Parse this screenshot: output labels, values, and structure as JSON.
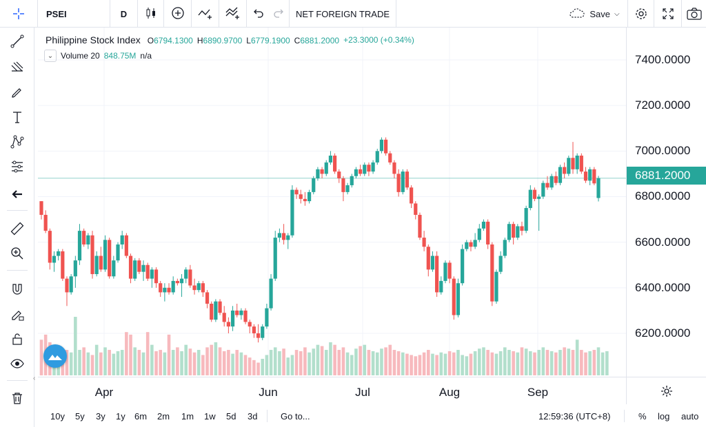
{
  "toolbar": {
    "symbol": "PSEI",
    "interval": "D",
    "indicator_label": "NET FOREIGN TRADE",
    "save_label": "Save"
  },
  "legend": {
    "title": "Philippine Stock Index",
    "o_key": "O",
    "o_val": "6794.1300",
    "h_key": "H",
    "h_val": "6890.9700",
    "l_key": "L",
    "l_val": "6779.1900",
    "c_key": "C",
    "c_val": "6881.2000",
    "change": "+23.3000 (+0.34%)"
  },
  "volume": {
    "label": "Volume 20",
    "value": "848.75M",
    "ma": "n/a"
  },
  "price_scale": {
    "ticks": [
      "7400.0000",
      "7200.0000",
      "7000.0000",
      "6800.0000",
      "6600.0000",
      "6400.0000",
      "6200.0000"
    ],
    "last_price": "6881.2000"
  },
  "time_axis": {
    "ticks": [
      "Apr",
      "Jun",
      "Jul",
      "Aug",
      "Sep"
    ]
  },
  "bottom_bar": {
    "ranges": [
      "10y",
      "5y",
      "3y",
      "1y",
      "6m",
      "2m",
      "1m",
      "1w",
      "5d",
      "3d"
    ],
    "goto": "Go to...",
    "clock": "12:59:36 (UTC+8)",
    "percent": "%",
    "log": "log",
    "auto": "auto"
  },
  "colors": {
    "up": "#26a69a",
    "down": "#ef5350",
    "up_volume": "#b2dfcc",
    "down_volume": "#f7b9bd",
    "accent": "#2962ff"
  },
  "icons": [
    "crosshair-icon",
    "trendline-icon",
    "fib-icon",
    "brush-icon",
    "text-icon",
    "pattern-icon",
    "prediction-icon",
    "back-arrow-icon",
    "ruler-icon",
    "zoom-icon",
    "magnet-icon",
    "lock-pencil-icon",
    "lock-icon",
    "eye-icon",
    "trash-icon",
    "gear-icon",
    "fullscreen-icon",
    "camera-icon",
    "undo-icon",
    "redo-icon",
    "cloud-icon"
  ],
  "chart_data": {
    "type": "candlestick",
    "title": "Philippine Stock Index",
    "categories": [
      "Apr",
      "Jun",
      "Jul",
      "Aug",
      "Sep"
    ],
    "ylim": [
      6000,
      7500
    ],
    "grid": true,
    "series": [
      {
        "name": "PSEI",
        "values": [
          [
            6780,
            6780,
            6700,
            6720
          ],
          [
            6720,
            6740,
            6640,
            6650
          ],
          [
            6650,
            6660,
            6480,
            6510
          ],
          [
            6510,
            6560,
            6470,
            6540
          ],
          [
            6540,
            6570,
            6520,
            6560
          ],
          [
            6560,
            6570,
            6430,
            6440
          ],
          [
            6440,
            6450,
            6320,
            6380
          ],
          [
            6380,
            6460,
            6370,
            6450
          ],
          [
            6450,
            6540,
            6400,
            6520
          ],
          [
            6520,
            6680,
            6500,
            6650
          ],
          [
            6650,
            6660,
            6580,
            6590
          ],
          [
            6590,
            6640,
            6570,
            6630
          ],
          [
            6630,
            6650,
            6440,
            6460
          ],
          [
            6460,
            6560,
            6450,
            6540
          ],
          [
            6540,
            6580,
            6470,
            6480
          ],
          [
            6480,
            6630,
            6470,
            6610
          ],
          [
            6610,
            6620,
            6440,
            6450
          ],
          [
            6450,
            6540,
            6440,
            6520
          ],
          [
            6520,
            6600,
            6510,
            6590
          ],
          [
            6590,
            6650,
            6570,
            6630
          ],
          [
            6630,
            6640,
            6530,
            6540
          ],
          [
            6540,
            6550,
            6420,
            6440
          ],
          [
            6440,
            6530,
            6430,
            6520
          ],
          [
            6520,
            6530,
            6460,
            6470
          ],
          [
            6470,
            6520,
            6430,
            6500
          ],
          [
            6500,
            6510,
            6430,
            6440
          ],
          [
            6440,
            6490,
            6400,
            6480
          ],
          [
            6480,
            6490,
            6400,
            6420
          ],
          [
            6420,
            6430,
            6360,
            6380
          ],
          [
            6380,
            6420,
            6340,
            6400
          ],
          [
            6400,
            6420,
            6370,
            6380
          ],
          [
            6380,
            6450,
            6370,
            6430
          ],
          [
            6430,
            6440,
            6410,
            6420
          ],
          [
            6420,
            6460,
            6360,
            6440
          ],
          [
            6440,
            6490,
            6420,
            6480
          ],
          [
            6480,
            6500,
            6400,
            6410
          ],
          [
            6410,
            6440,
            6370,
            6390
          ],
          [
            6390,
            6430,
            6380,
            6420
          ],
          [
            6420,
            6430,
            6360,
            6380
          ],
          [
            6380,
            6390,
            6310,
            6330
          ],
          [
            6330,
            6340,
            6250,
            6260
          ],
          [
            6260,
            6350,
            6250,
            6340
          ],
          [
            6340,
            6350,
            6280,
            6290
          ],
          [
            6290,
            6320,
            6230,
            6250
          ],
          [
            6250,
            6270,
            6200,
            6230
          ],
          [
            6230,
            6320,
            6210,
            6300
          ],
          [
            6300,
            6330,
            6270,
            6280
          ],
          [
            6280,
            6310,
            6260,
            6300
          ],
          [
            6300,
            6310,
            6240,
            6250
          ],
          [
            6250,
            6260,
            6200,
            6230
          ],
          [
            6230,
            6240,
            6180,
            6200
          ],
          [
            6200,
            6240,
            6160,
            6180
          ],
          [
            6180,
            6240,
            6170,
            6230
          ],
          [
            6230,
            6330,
            6220,
            6310
          ],
          [
            6310,
            6460,
            6300,
            6440
          ],
          [
            6440,
            6650,
            6430,
            6620
          ],
          [
            6620,
            6660,
            6600,
            6640
          ],
          [
            6640,
            6680,
            6590,
            6610
          ],
          [
            6610,
            6640,
            6570,
            6630
          ],
          [
            6630,
            6850,
            6620,
            6830
          ],
          [
            6830,
            6840,
            6790,
            6810
          ],
          [
            6810,
            6830,
            6770,
            6790
          ],
          [
            6790,
            6820,
            6760,
            6780
          ],
          [
            6780,
            6830,
            6770,
            6820
          ],
          [
            6820,
            6890,
            6810,
            6880
          ],
          [
            6880,
            6930,
            6870,
            6920
          ],
          [
            6920,
            6930,
            6880,
            6900
          ],
          [
            6900,
            6960,
            6890,
            6950
          ],
          [
            6950,
            7000,
            6940,
            6980
          ],
          [
            6980,
            6990,
            6900,
            6910
          ],
          [
            6910,
            6920,
            6860,
            6880
          ],
          [
            6880,
            6890,
            6780,
            6820
          ],
          [
            6820,
            6860,
            6810,
            6850
          ],
          [
            6850,
            6900,
            6840,
            6890
          ],
          [
            6890,
            6930,
            6880,
            6920
          ],
          [
            6920,
            6940,
            6890,
            6900
          ],
          [
            6900,
            6950,
            6890,
            6940
          ],
          [
            6940,
            6950,
            6890,
            6910
          ],
          [
            6910,
            6960,
            6900,
            6950
          ],
          [
            6950,
            7010,
            6940,
            7000
          ],
          [
            7000,
            7060,
            6990,
            7050
          ],
          [
            7050,
            7060,
            6980,
            6990
          ],
          [
            6990,
            7000,
            6940,
            6950
          ],
          [
            6950,
            6960,
            6880,
            6900
          ],
          [
            6900,
            6920,
            6800,
            6820
          ],
          [
            6820,
            6920,
            6810,
            6910
          ],
          [
            6910,
            6920,
            6830,
            6840
          ],
          [
            6840,
            6850,
            6750,
            6770
          ],
          [
            6770,
            6780,
            6700,
            6720
          ],
          [
            6720,
            6730,
            6610,
            6620
          ],
          [
            6620,
            6650,
            6560,
            6580
          ],
          [
            6580,
            6590,
            6450,
            6480
          ],
          [
            6480,
            6560,
            6470,
            6540
          ],
          [
            6540,
            6560,
            6360,
            6380
          ],
          [
            6380,
            6450,
            6370,
            6430
          ],
          [
            6430,
            6520,
            6420,
            6510
          ],
          [
            6510,
            6520,
            6420,
            6440
          ],
          [
            6440,
            6450,
            6260,
            6280
          ],
          [
            6280,
            6440,
            6270,
            6420
          ],
          [
            6420,
            6590,
            6410,
            6570
          ],
          [
            6570,
            6610,
            6560,
            6600
          ],
          [
            6600,
            6610,
            6560,
            6580
          ],
          [
            6580,
            6640,
            6570,
            6610
          ],
          [
            6610,
            6680,
            6600,
            6660
          ],
          [
            6660,
            6700,
            6650,
            6690
          ],
          [
            6690,
            6700,
            6570,
            6590
          ],
          [
            6590,
            6600,
            6320,
            6340
          ],
          [
            6340,
            6480,
            6330,
            6470
          ],
          [
            6470,
            6560,
            6460,
            6540
          ],
          [
            6540,
            6620,
            6530,
            6610
          ],
          [
            6610,
            6690,
            6600,
            6680
          ],
          [
            6680,
            6690,
            6590,
            6620
          ],
          [
            6620,
            6680,
            6610,
            6670
          ],
          [
            6670,
            6690,
            6630,
            6650
          ],
          [
            6650,
            6760,
            6640,
            6750
          ],
          [
            6750,
            6850,
            6740,
            6830
          ],
          [
            6830,
            6840,
            6780,
            6790
          ],
          [
            6790,
            6810,
            6650,
            6800
          ],
          [
            6800,
            6870,
            6790,
            6860
          ],
          [
            6860,
            6890,
            6830,
            6840
          ],
          [
            6840,
            6900,
            6830,
            6890
          ],
          [
            6890,
            6910,
            6850,
            6860
          ],
          [
            6860,
            6940,
            6850,
            6930
          ],
          [
            6930,
            6950,
            6880,
            6900
          ],
          [
            6900,
            6980,
            6890,
            6970
          ],
          [
            6970,
            7040,
            6900,
            6920
          ],
          [
            6920,
            6990,
            6900,
            6980
          ],
          [
            6980,
            6990,
            6900,
            6910
          ],
          [
            6910,
            6930,
            6860,
            6870
          ],
          [
            6870,
            6930,
            6850,
            6920
          ],
          [
            6920,
            6930,
            6850,
            6858
          ],
          [
            6794,
            6891,
            6779,
            6881
          ]
        ]
      }
    ],
    "volume": [
      140,
      160,
      130,
      95,
      110,
      90,
      100,
      90,
      230,
      100,
      110,
      90,
      80,
      120,
      90,
      110,
      100,
      85,
      95,
      100,
      170,
      160,
      110,
      100,
      90,
      170,
      120,
      95,
      100,
      90,
      160,
      100,
      110,
      95,
      120,
      105,
      90,
      100,
      80,
      110,
      120,
      130,
      110,
      95,
      100,
      85,
      100,
      90,
      80,
      70,
      60,
      50,
      65,
      80,
      100,
      110,
      95,
      105,
      70,
      80,
      100,
      95,
      110,
      90,
      105,
      120,
      115,
      100,
      130,
      120,
      100,
      110,
      90,
      80,
      105,
      115,
      120,
      100,
      95,
      90,
      105,
      110,
      120,
      100,
      95,
      90,
      85,
      80,
      75,
      80,
      90,
      100,
      85,
      80,
      90,
      85,
      95,
      90,
      100,
      80,
      75,
      85,
      95,
      105,
      110,
      100,
      90,
      85,
      95,
      110,
      100,
      95,
      90,
      110,
      105,
      95,
      90,
      100,
      110,
      100,
      95,
      90,
      100,
      110,
      105,
      100,
      140,
      100,
      90,
      95,
      100,
      110,
      90,
      95
    ]
  }
}
